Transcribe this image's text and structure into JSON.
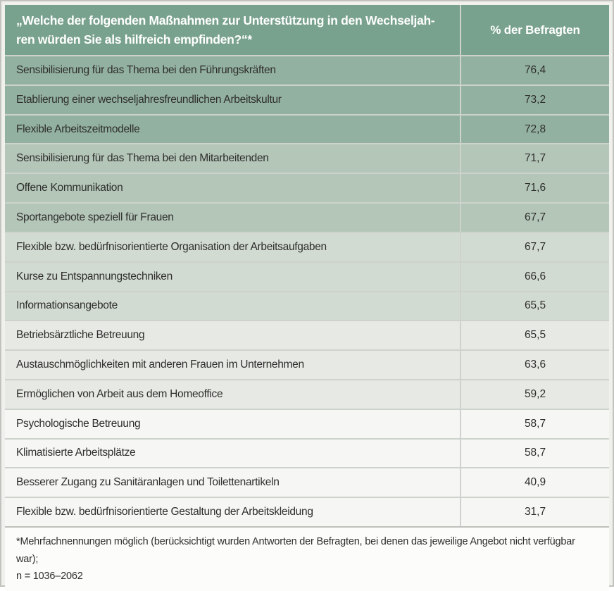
{
  "table": {
    "header": {
      "question_line1": "„Welche der folgenden Maßnahmen zur Unterstützung in den Wechseljah-",
      "question_line2": "ren würden Sie als hilfreich empfinden?“*",
      "value_column": "% der Befragten"
    },
    "rows": [
      {
        "label": "Sensibilisierung für das Thema bei den Führungskräften",
        "value": "76,4",
        "band": "1"
      },
      {
        "label": "Etablierung einer wechseljahresfreundlichen Arbeitskultur",
        "value": "73,2",
        "band": "1"
      },
      {
        "label": "Flexible Arbeitszeitmodelle",
        "value": "72,8",
        "band": "1"
      },
      {
        "label": "Sensibilisierung für das Thema bei den Mitarbeitenden",
        "value": "71,7",
        "band": "2"
      },
      {
        "label": "Offene Kommunikation",
        "value": "71,6",
        "band": "2"
      },
      {
        "label": "Sportangebote speziell für Frauen",
        "value": "67,7",
        "band": "2"
      },
      {
        "label": "Flexible bzw. bedürfnisorientierte Organisation der Arbeitsaufgaben",
        "value": "67,7",
        "band": "3"
      },
      {
        "label": "Kurse zu Entspannungstechniken",
        "value": "66,6",
        "band": "3"
      },
      {
        "label": "Informationsangebote",
        "value": "65,5",
        "band": "3"
      },
      {
        "label": "Betriebsärztliche Betreuung",
        "value": "65,5",
        "band": "4"
      },
      {
        "label": "Austauschmöglichkeiten mit anderen Frauen im Unternehmen",
        "value": "63,6",
        "band": "4"
      },
      {
        "label": "Ermöglichen von Arbeit aus dem Homeoffice",
        "value": "59,2",
        "band": "4"
      },
      {
        "label": "Psychologische Betreuung",
        "value": "58,7",
        "band": "5"
      },
      {
        "label": "Klimatisierte Arbeitsplätze",
        "value": "58,7",
        "band": "5"
      },
      {
        "label": "Besserer Zugang zu Sanitäranlagen und Toilettenartikeln",
        "value": "40,9",
        "band": "5"
      },
      {
        "label": "Flexible bzw. bedürfnisorientierte Gestaltung der Arbeitskleidung",
        "value": "31,7",
        "band": "5"
      }
    ]
  },
  "footnote": {
    "line1": "*Mehrfachnennungen möglich (berücksichtigt wurden Antworten der Befragten, bei denen das jeweilige Angebot nicht verfügbar war);",
    "line2": "n = 1036–2062"
  },
  "colors": {
    "header_bg": "#79a28e",
    "band1_bg": "#93b1a0",
    "band2_bg": "#b4c6b8",
    "band3_bg": "#d2dbd1",
    "band4_bg": "#e7eae4",
    "band5_bg": "#f6f6f4",
    "divider": "#cdd3cc",
    "frame_border": "#c2c3be",
    "header_text": "#ffffff",
    "body_text": "#2e2e2d"
  },
  "chart_data": {
    "type": "table",
    "title": "„Welche der folgenden Maßnahmen zur Unterstützung in den Wechseljahren würden Sie als hilfreich empfinden?“*",
    "value_column_label": "% der Befragten",
    "categories": [
      "Sensibilisierung für das Thema bei den Führungskräften",
      "Etablierung einer wechseljahresfreundlichen Arbeitskultur",
      "Flexible Arbeitszeitmodelle",
      "Sensibilisierung für das Thema bei den Mitarbeitenden",
      "Offene Kommunikation",
      "Sportangebote speziell für Frauen",
      "Flexible bzw. bedürfnisorientierte Organisation der Arbeitsaufgaben",
      "Kurse zu Entspannungstechniken",
      "Informationsangebote",
      "Betriebsärztliche Betreuung",
      "Austauschmöglichkeiten mit anderen Frauen im Unternehmen",
      "Ermöglichen von Arbeit aus dem Homeoffice",
      "Psychologische Betreuung",
      "Klimatisierte Arbeitsplätze",
      "Besserer Zugang zu Sanitäranlagen und Toilettenartikeln",
      "Flexible bzw. bedürfnisorientierte Gestaltung der Arbeitskleidung"
    ],
    "values": [
      76.4,
      73.2,
      72.8,
      71.7,
      71.6,
      67.7,
      67.7,
      66.6,
      65.5,
      65.5,
      63.6,
      59.2,
      58.7,
      58.7,
      40.9,
      31.7
    ],
    "footnote": "*Mehrfachnennungen möglich (berücksichtigt wurden Antworten der Befragten, bei denen das jeweilige Angebot nicht verfügbar war); n = 1036–2062",
    "layout": {
      "shading": "value-banded heatmap, darker green = higher value",
      "grid": "light dividers"
    }
  }
}
